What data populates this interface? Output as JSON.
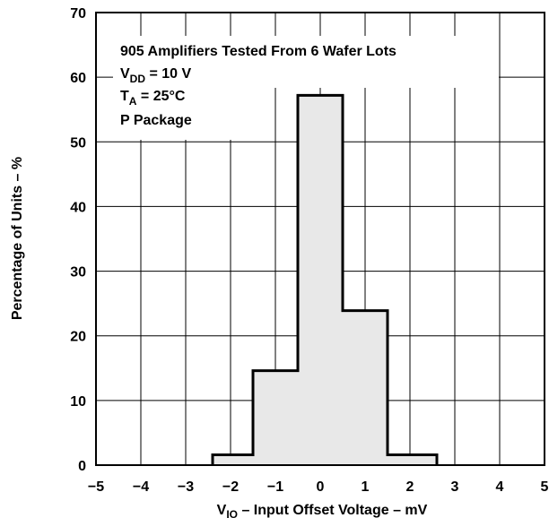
{
  "chart_data": {
    "type": "bar",
    "title": "",
    "xlabel": {
      "main": "V",
      "sub": "IO",
      "rest": " – Input Offset Voltage – mV"
    },
    "ylabel": "Percentage of Units – %",
    "xlim": [
      -5,
      5
    ],
    "ylim": [
      0,
      70
    ],
    "x_ticks": [
      -5,
      -4,
      -3,
      -2,
      -1,
      0,
      1,
      2,
      3,
      4,
      5
    ],
    "y_ticks": [
      0,
      10,
      20,
      30,
      40,
      50,
      60,
      70
    ],
    "grid": true,
    "bins": [
      {
        "x0": -2.4,
        "x1": -1.5,
        "value": 1.6
      },
      {
        "x0": -1.5,
        "x1": -0.5,
        "value": 14.6
      },
      {
        "x0": -0.5,
        "x1": 0.5,
        "value": 57.2
      },
      {
        "x0": 0.5,
        "x1": 1.5,
        "value": 23.9
      },
      {
        "x0": 1.5,
        "x1": 2.6,
        "value": 1.6
      }
    ],
    "fill_color": "#e8e8e8",
    "annotations": {
      "line1": "905 Amplifiers Tested From 6 Wafer Lots",
      "line2": {
        "main": "V",
        "sub": "DD",
        "rest": " = 10 V"
      },
      "line3": {
        "main": "T",
        "sub": "A",
        "rest": " = 25°C"
      },
      "line4": "P Package"
    }
  }
}
